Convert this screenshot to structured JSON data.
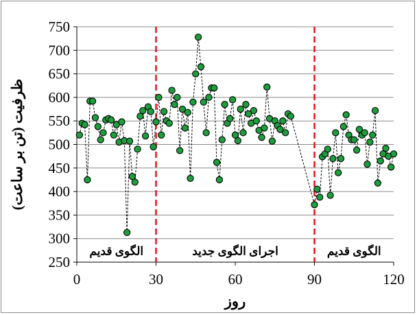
{
  "chart_data": {
    "type": "scatter",
    "xlabel": "روز",
    "ylabel": "ظرفیت (تن بر ساعت)",
    "xlim": [
      0,
      120
    ],
    "ylim": [
      250,
      750
    ],
    "xticks": [
      0,
      30,
      60,
      90,
      120
    ],
    "yticks": [
      250,
      300,
      350,
      400,
      450,
      500,
      550,
      600,
      650,
      700,
      750
    ],
    "grid": "horizontal",
    "vlines": [
      30,
      90
    ],
    "annotations": [
      {
        "text": "الگوی قدیم",
        "x_range": [
          0,
          30
        ]
      },
      {
        "text": "اجرای الگوی جدید",
        "x_range": [
          30,
          90
        ]
      },
      {
        "text": "الگوی قدیم",
        "x_range": [
          90,
          120
        ]
      }
    ],
    "series": [
      {
        "style": "markers",
        "marker_color": "#1e9e3e",
        "x": [
          1,
          2,
          3,
          4,
          5,
          6,
          7,
          8,
          9,
          10,
          11,
          12,
          13,
          14,
          15,
          16,
          17,
          18,
          19,
          20,
          21,
          22,
          23,
          24,
          25,
          26,
          27,
          28,
          29,
          30,
          31,
          32,
          33,
          34,
          35,
          36,
          37,
          38,
          39,
          40,
          41,
          42,
          43,
          44,
          45,
          46,
          47,
          48,
          49,
          50,
          51,
          52,
          53,
          54,
          55,
          56,
          57,
          58,
          59,
          60,
          61,
          62,
          63,
          64,
          65,
          66,
          67,
          68,
          69,
          70,
          71,
          72,
          73,
          74,
          75,
          76,
          77,
          78,
          79,
          80,
          81,
          90,
          91,
          92,
          93,
          94,
          95,
          96,
          97,
          98,
          99,
          100,
          101,
          102,
          103,
          104,
          105,
          106,
          107,
          108,
          109,
          110,
          111,
          112,
          113,
          114,
          115,
          116,
          117,
          118,
          119,
          120
        ],
        "y": [
          520,
          545,
          542,
          425,
          592,
          592,
          557,
          538,
          510,
          525,
          552,
          555,
          552,
          520,
          542,
          505,
          548,
          508,
          313,
          507,
          432,
          420,
          490,
          560,
          572,
          518,
          580,
          570,
          495,
          548,
          600,
          520,
          570,
          550,
          545,
          615,
          585,
          600,
          487,
          575,
          535,
          568,
          428,
          590,
          650,
          728,
          665,
          590,
          525,
          600,
          620,
          620,
          462,
          425,
          510,
          585,
          545,
          555,
          595,
          520,
          508,
          575,
          525,
          585,
          565,
          545,
          572,
          550,
          530,
          515,
          535,
          622,
          555,
          507,
          550,
          540,
          532,
          550,
          525,
          565,
          560,
          372,
          405,
          388,
          474,
          480,
          490,
          392,
          470,
          525,
          440,
          470,
          538,
          563,
          520,
          510,
          510,
          488,
          532,
          520,
          525,
          458,
          505,
          520,
          572,
          418,
          465,
          480,
          492,
          475,
          452,
          480
        ]
      },
      {
        "style": "dashed-line",
        "color": "#000000",
        "segments": [
          [
            1,
            81
          ],
          [
            81,
            120
          ]
        ]
      }
    ]
  }
}
